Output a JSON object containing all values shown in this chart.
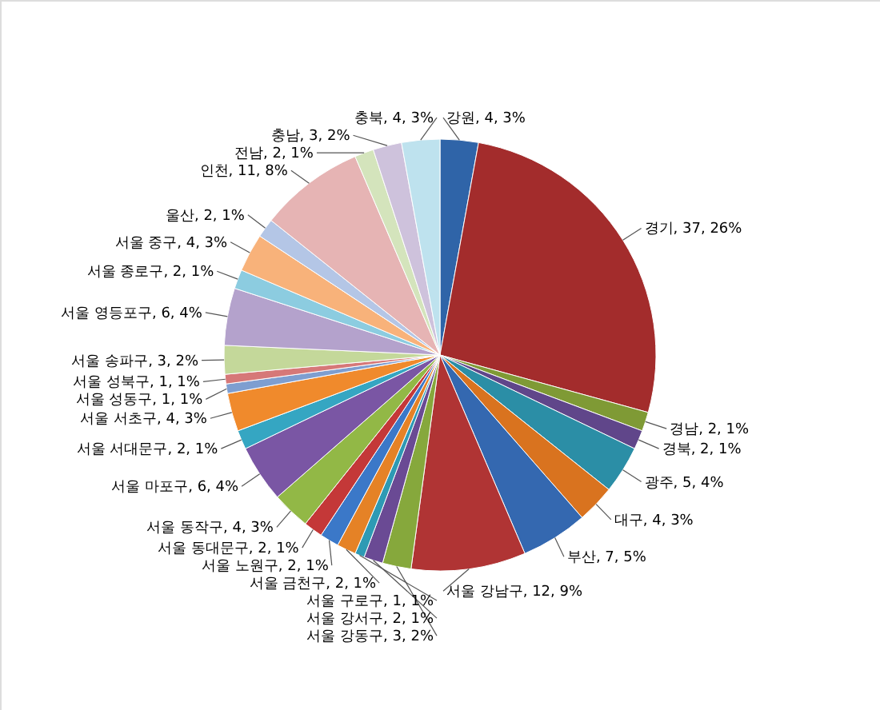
{
  "chart_data": {
    "type": "pie",
    "categories": [
      "강원",
      "경기",
      "경남",
      "경북",
      "광주",
      "대구",
      "부산",
      "서울 강남구",
      "서울 강동구",
      "서울 강서구",
      "서울 구로구",
      "서울 금천구",
      "서울 노원구",
      "서울 동대문구",
      "서울 동작구",
      "서울 마포구",
      "서울 서대문구",
      "서울 서초구",
      "서울 성동구",
      "서울 성북구",
      "서울 송파구",
      "서울 영등포구",
      "서울 종로구",
      "서울 중구",
      "울산",
      "인천",
      "전남",
      "충남",
      "충북"
    ],
    "values": [
      4,
      37,
      2,
      2,
      5,
      4,
      7,
      12,
      3,
      2,
      1,
      2,
      2,
      2,
      4,
      6,
      2,
      4,
      1,
      1,
      3,
      6,
      2,
      4,
      2,
      11,
      2,
      3,
      4
    ],
    "value_labels": [
      "4, 3%",
      "37, 26%",
      "2, 1%",
      "2, 1%",
      "5, 4%",
      "4, 3%",
      "7, 5%",
      "12, 9%",
      "3, 2%",
      "2, 1%",
      "1, 1%",
      "2, 1%",
      "2, 1%",
      "2, 1%",
      "4, 3%",
      "6, 4%",
      "2, 1%",
      "4, 3%",
      "1, 1%",
      "1, 1%",
      "3, 2%",
      "6, 4%",
      "2, 1%",
      "4, 3%",
      "2, 1%",
      "11, 8%",
      "2, 1%",
      "3, 2%",
      "4, 3%"
    ],
    "colors": [
      "#2f64a8",
      "#a32c2c",
      "#7f9a35",
      "#60468a",
      "#2b8ea6",
      "#d9731f",
      "#3468b0",
      "#b03434",
      "#86a83c",
      "#6a4a94",
      "#2e9ab4",
      "#e58226",
      "#3b78c8",
      "#c43838",
      "#92b846",
      "#7a56a4",
      "#35a6c2",
      "#f08a2c",
      "#7e9ed0",
      "#d67878",
      "#c4d89a",
      "#b4a2cc",
      "#8ccce0",
      "#f8b27a",
      "#b4c6e6",
      "#e6b4b4",
      "#d4e4bc",
      "#cec2dc",
      "#bee2ee"
    ]
  }
}
